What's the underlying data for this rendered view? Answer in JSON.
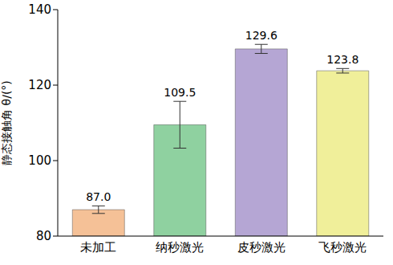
{
  "chart_data": {
    "type": "bar",
    "categories": [
      "未加工",
      "纳秒激光",
      "皮秒激光",
      "飞秒激光"
    ],
    "values": [
      87.0,
      109.5,
      129.6,
      123.8
    ],
    "value_labels": [
      "87.0",
      "109.5",
      "129.6",
      "123.8"
    ],
    "errors": [
      1.0,
      6.2,
      1.2,
      0.6
    ],
    "colors": [
      "#f5c197",
      "#8fd1a0",
      "#b5a6d4",
      "#f0ef9a"
    ],
    "y_label": "静态接触角 θ/(°)",
    "ylim": [
      80,
      140
    ],
    "yticks": [
      80,
      100,
      120,
      140
    ],
    "grid": false,
    "data_labels": true
  }
}
